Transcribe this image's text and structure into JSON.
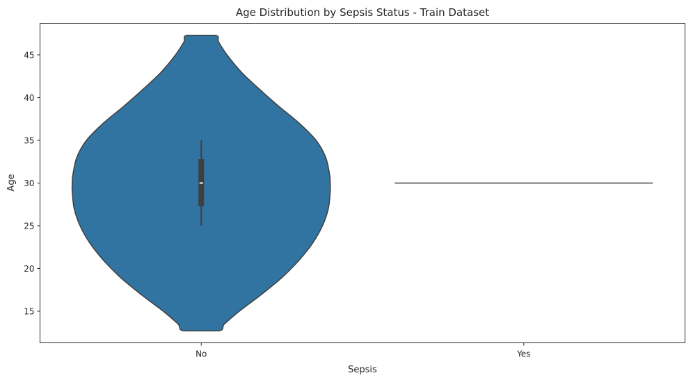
{
  "chart_data": {
    "type": "violin",
    "title": "Age Distribution by Sepsis Status - Train Dataset",
    "xlabel": "Sepsis",
    "ylabel": "Age",
    "categories": [
      "No",
      "Yes"
    ],
    "ylim": [
      11.3,
      48.7
    ],
    "yticks": [
      15,
      20,
      25,
      30,
      35,
      40,
      45
    ],
    "grid": false,
    "violin_color": "#3274a1",
    "outline_color": "#3f3f3f",
    "violins": [
      {
        "category": "No",
        "min": 12.7,
        "max": 47.3,
        "q1": 27.3,
        "median": 30.0,
        "q3": 32.8,
        "whisker_low": 25.0,
        "whisker_high": 35.0,
        "density_profile": [
          [
            12.7,
            0.135
          ],
          [
            13.5,
            0.18
          ],
          [
            15.0,
            0.295
          ],
          [
            17.0,
            0.47
          ],
          [
            19.0,
            0.63
          ],
          [
            21.0,
            0.76
          ],
          [
            23.0,
            0.865
          ],
          [
            25.0,
            0.94
          ],
          [
            27.0,
            0.985
          ],
          [
            29.0,
            1.0
          ],
          [
            30.0,
            1.0
          ],
          [
            31.0,
            0.995
          ],
          [
            33.0,
            0.965
          ],
          [
            35.0,
            0.89
          ],
          [
            37.0,
            0.76
          ],
          [
            39.0,
            0.6
          ],
          [
            41.0,
            0.45
          ],
          [
            43.0,
            0.31
          ],
          [
            45.0,
            0.2
          ],
          [
            46.5,
            0.135
          ],
          [
            47.3,
            0.11
          ]
        ]
      },
      {
        "category": "Yes",
        "value": 30.0
      }
    ]
  }
}
